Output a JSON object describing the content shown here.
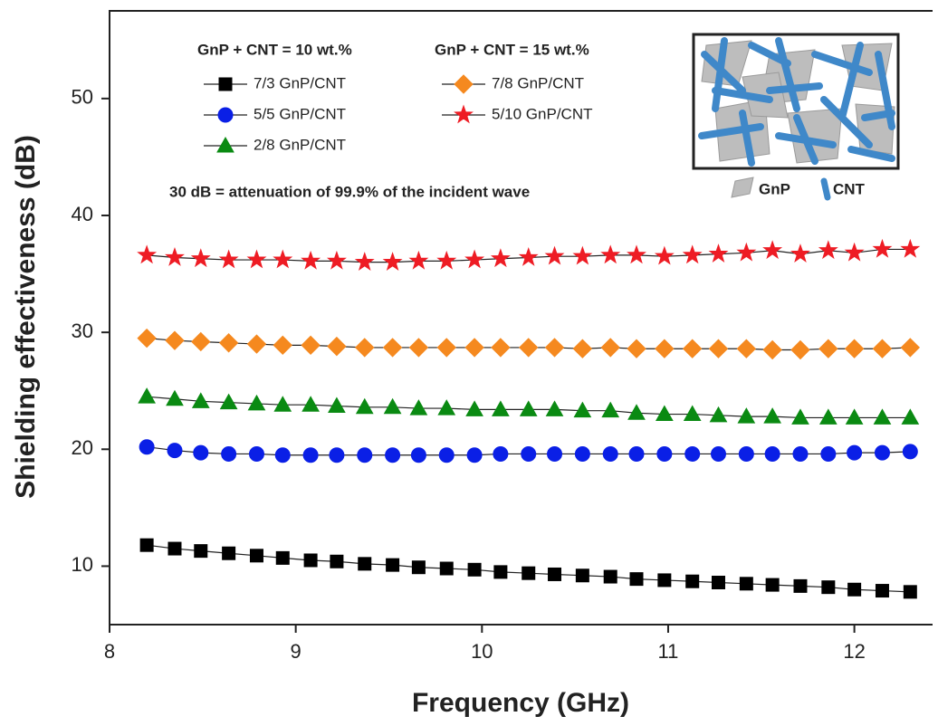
{
  "chart_data": {
    "type": "line",
    "x_label": "Frequency (GHz)",
    "y_label": "Shielding effectiveness (dB)",
    "legend_titles": [
      "GnP + CNT = 10 wt.%",
      "GnP + CNT = 15 wt.%"
    ],
    "annotation": "30 dB = attenuation of 99.9% of the incident wave",
    "inset_labels": [
      "GnP",
      "CNT"
    ],
    "x": [
      8.2,
      8.35,
      8.49,
      8.64,
      8.79,
      8.93,
      9.08,
      9.22,
      9.37,
      9.52,
      9.66,
      9.81,
      9.96,
      10.1,
      10.25,
      10.39,
      10.54,
      10.69,
      10.83,
      10.98,
      11.13,
      11.27,
      11.42,
      11.56,
      11.71,
      11.86,
      12.0,
      12.15,
      12.3
    ],
    "series": [
      {
        "name": "7/3 GnP/CNT",
        "color": "#000000",
        "marker": "square",
        "values": [
          11.8,
          11.5,
          11.3,
          11.1,
          10.9,
          10.7,
          10.5,
          10.4,
          10.2,
          10.1,
          9.9,
          9.8,
          9.7,
          9.5,
          9.4,
          9.3,
          9.2,
          9.1,
          8.9,
          8.8,
          8.7,
          8.6,
          8.5,
          8.4,
          8.3,
          8.2,
          8.0,
          7.9,
          7.8
        ]
      },
      {
        "name": "5/5 GnP/CNT",
        "color": "#0a1fe6",
        "marker": "circle",
        "values": [
          20.2,
          19.9,
          19.7,
          19.6,
          19.6,
          19.5,
          19.5,
          19.5,
          19.5,
          19.5,
          19.5,
          19.5,
          19.5,
          19.6,
          19.6,
          19.6,
          19.6,
          19.6,
          19.6,
          19.6,
          19.6,
          19.6,
          19.6,
          19.6,
          19.6,
          19.6,
          19.7,
          19.7,
          19.8
        ]
      },
      {
        "name": "2/8 GnP/CNT",
        "color": "#0a8a12",
        "marker": "triangle",
        "values": [
          24.5,
          24.3,
          24.1,
          24.0,
          23.9,
          23.8,
          23.8,
          23.7,
          23.6,
          23.6,
          23.5,
          23.5,
          23.4,
          23.4,
          23.4,
          23.4,
          23.3,
          23.3,
          23.1,
          23.0,
          23.0,
          22.9,
          22.8,
          22.8,
          22.7,
          22.7,
          22.7,
          22.7,
          22.7
        ]
      },
      {
        "name": "7/8 GnP/CNT",
        "color": "#f5891f",
        "marker": "diamond",
        "values": [
          29.5,
          29.3,
          29.2,
          29.1,
          29.0,
          28.9,
          28.9,
          28.8,
          28.7,
          28.7,
          28.7,
          28.7,
          28.7,
          28.7,
          28.7,
          28.7,
          28.6,
          28.7,
          28.6,
          28.6,
          28.6,
          28.6,
          28.6,
          28.5,
          28.5,
          28.6,
          28.6,
          28.6,
          28.7
        ]
      },
      {
        "name": "5/10 GnP/CNT",
        "color": "#ee1c24",
        "marker": "star",
        "values": [
          36.6,
          36.4,
          36.3,
          36.2,
          36.2,
          36.2,
          36.1,
          36.1,
          36.0,
          36.0,
          36.1,
          36.1,
          36.2,
          36.3,
          36.4,
          36.5,
          36.5,
          36.6,
          36.6,
          36.5,
          36.6,
          36.7,
          36.8,
          37.0,
          36.7,
          37.0,
          36.8,
          37.1,
          37.1
        ]
      }
    ],
    "xlim": [
      8,
      12.42
    ],
    "xticks": [
      8,
      9,
      10,
      11,
      12
    ],
    "ylim": [
      5,
      57.5
    ],
    "yticks": [
      10,
      20,
      30,
      40,
      50
    ]
  }
}
